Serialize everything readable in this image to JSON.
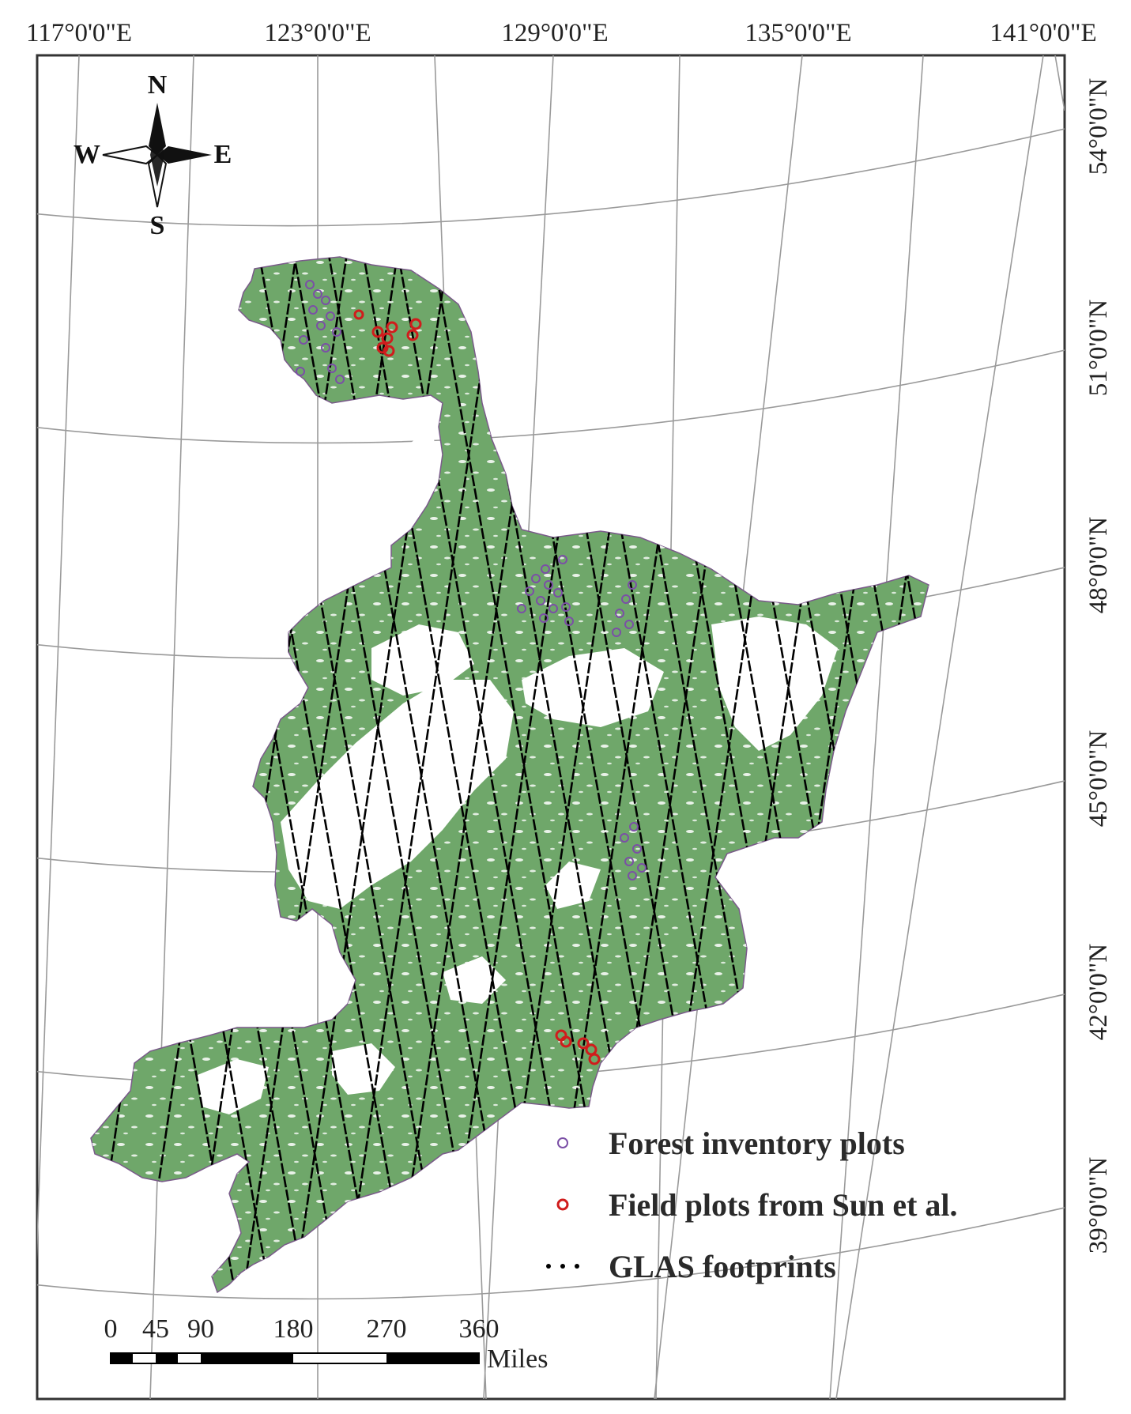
{
  "top_labels": [
    "117°0'0\"E",
    "123°0'0\"E",
    "129°0'0\"E",
    "135°0'0\"E",
    "141°0'0\"E"
  ],
  "side_labels": [
    "54°0'0\"N",
    "51°0'0\"N",
    "48°0'0\"N",
    "45°0'0\"N",
    "42°0'0\"N",
    "39°0'0\"N"
  ],
  "compass": {
    "n": "N",
    "s": "S",
    "e": "E",
    "w": "W"
  },
  "legend": {
    "items": [
      {
        "label": "Forest inventory plots",
        "symbol": "purple-circle-icon",
        "color": "#7b4fa6"
      },
      {
        "label": "Field plots from Sun et al.",
        "symbol": "red-circle-icon",
        "color": "#d01c1c"
      },
      {
        "label": "GLAS footprints",
        "symbol": "black-dots-icon",
        "color": "#000000"
      }
    ]
  },
  "scale_bar": {
    "ticks": [
      "0",
      "45",
      "90",
      "180",
      "270",
      "360"
    ],
    "unit": "Miles"
  },
  "colors": {
    "forest": "#6fa76a",
    "graticule": "#9a9a9a",
    "frame": "#333333"
  }
}
